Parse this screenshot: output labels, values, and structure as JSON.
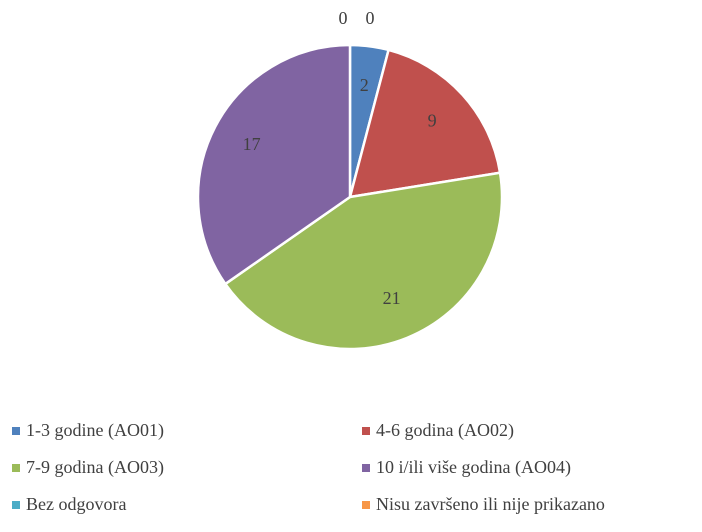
{
  "chart_data": {
    "type": "pie",
    "categories": [
      "1-3 godine (AO01)",
      "4-6 godina (AO02)",
      "7-9 godina (AO03)",
      "10 i/ili više godina (AO04)",
      "Bez odgovora",
      "Nisu završeno ili nije prikazano"
    ],
    "values": [
      2,
      9,
      21,
      17,
      0,
      0
    ],
    "colors": [
      "#4f81bd",
      "#c0504d",
      "#9bbb59",
      "#8064a2",
      "#4bacc6",
      "#f79646"
    ],
    "legend": "bottom"
  }
}
